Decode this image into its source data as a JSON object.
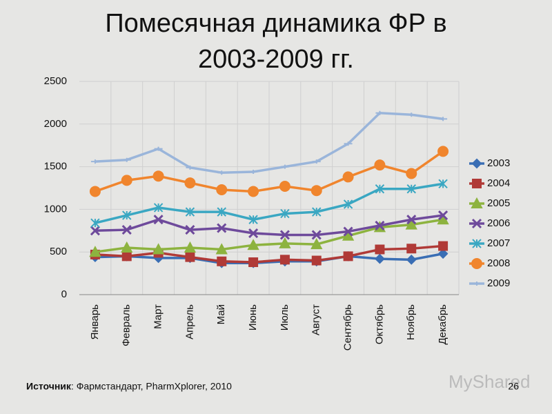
{
  "chart_data": {
    "type": "line",
    "title": [
      "Помесячная динамика ФР в",
      "2003-2009 гг."
    ],
    "categories": [
      "Январь",
      "Февраль",
      "Март",
      "Апрель",
      "Май",
      "Июнь",
      "Июль",
      "Август",
      "Сентябрь",
      "Октябрь",
      "Ноябрь",
      "Декабрь"
    ],
    "series": [
      {
        "name": "2003",
        "color": "#3a6eb4",
        "marker": "diamond",
        "values": [
          440,
          450,
          430,
          430,
          370,
          370,
          390,
          390,
          450,
          420,
          410,
          480
        ]
      },
      {
        "name": "2004",
        "color": "#b03a37",
        "marker": "square",
        "values": [
          470,
          450,
          490,
          440,
          390,
          380,
          410,
          400,
          450,
          530,
          540,
          570
        ]
      },
      {
        "name": "2005",
        "color": "#8db33f",
        "marker": "triangle",
        "values": [
          500,
          550,
          530,
          550,
          530,
          580,
          600,
          590,
          690,
          790,
          820,
          880
        ]
      },
      {
        "name": "2006",
        "color": "#6e4a9b",
        "marker": "cross",
        "values": [
          750,
          760,
          880,
          760,
          780,
          720,
          700,
          700,
          740,
          810,
          880,
          930
        ]
      },
      {
        "name": "2007",
        "color": "#3aa7c2",
        "marker": "asterisk",
        "values": [
          840,
          930,
          1020,
          970,
          970,
          880,
          950,
          970,
          1060,
          1240,
          1240,
          1300
        ]
      },
      {
        "name": "2008",
        "color": "#f0852d",
        "marker": "circle",
        "values": [
          1210,
          1340,
          1390,
          1310,
          1230,
          1210,
          1270,
          1220,
          1380,
          1520,
          1420,
          1680
        ]
      },
      {
        "name": "2009",
        "color": "#9ab5da",
        "marker": "plus",
        "values": [
          1560,
          1580,
          1710,
          1490,
          1430,
          1440,
          1500,
          1560,
          1770,
          2130,
          2110,
          2060
        ]
      }
    ],
    "ylim": [
      0,
      2500
    ],
    "yticks": [
      0,
      500,
      1000,
      1500,
      2000,
      2500
    ],
    "grid": true,
    "legend": "right"
  },
  "footer": {
    "source_label": "Источник",
    "source_text": ": Фармстандарт, PharmXplorer, 2010",
    "page": "26",
    "watermark": "MyShared"
  }
}
